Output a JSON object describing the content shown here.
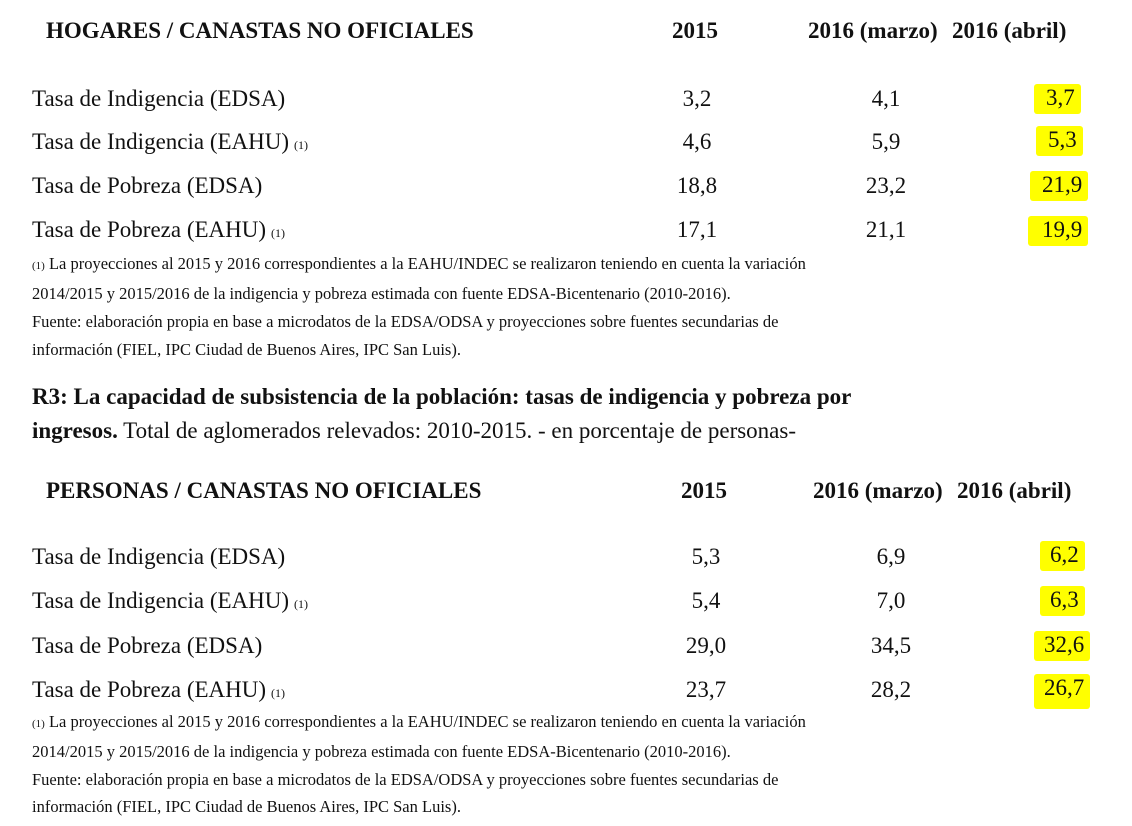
{
  "tables": [
    {
      "header": {
        "title": "HOGARES / CANASTAS NO OFICIALES",
        "col1": "2015",
        "col2": "2016 (marzo)",
        "col3": "2016 (abril)"
      },
      "rows": [
        {
          "label": "Tasa de Indigencia (EDSA)",
          "note": "",
          "v1": "3,2",
          "v2": "4,1",
          "v3": "3,7"
        },
        {
          "label": "Tasa de Indigencia (EAHU)",
          "note": "(1)",
          "v1": "4,6",
          "v2": "5,9",
          "v3": "5,3"
        },
        {
          "label": "Tasa de Pobreza (EDSA)",
          "note": "",
          "v1": "18,8",
          "v2": "23,2",
          "v3": "21,9"
        },
        {
          "label": "Tasa de Pobreza (EAHU)",
          "note": "(1)",
          "v1": "17,1",
          "v2": "21,1",
          "v3": "19,9"
        }
      ],
      "footnote": {
        "marker": "(1)",
        "line1": "La proyecciones al 2015 y 2016 correspondientes a la EAHU/INDEC se realizaron teniendo en cuenta la variación",
        "line2": "2014/2015 y 2015/2016 de la indigencia y pobreza estimada con fuente EDSA-Bicentenario (2010-2016).",
        "line3": "Fuente: elaboración propia en base a microdatos de la EDSA/ODSA y proyecciones sobre fuentes secundarias de",
        "line4": "información (FIEL, IPC Ciudad de Buenos Aires, IPC San Luis)."
      }
    },
    {
      "header": {
        "title": "PERSONAS / CANASTAS NO OFICIALES",
        "col1": "2015",
        "col2": "2016 (marzo)",
        "col3": "2016 (abril)"
      },
      "rows": [
        {
          "label": "Tasa de Indigencia (EDSA)",
          "note": "",
          "v1": "5,3",
          "v2": "6,9",
          "v3": "6,2"
        },
        {
          "label": "Tasa de Indigencia (EAHU)",
          "note": "(1)",
          "v1": "5,4",
          "v2": "7,0",
          "v3": "6,3"
        },
        {
          "label": "Tasa de Pobreza (EDSA)",
          "note": "",
          "v1": "29,0",
          "v2": "34,5",
          "v3": "32,6"
        },
        {
          "label": "Tasa de Pobreza (EAHU)",
          "note": "(1)",
          "v1": "23,7",
          "v2": "28,2",
          "v3": "26,7"
        }
      ],
      "footnote": {
        "marker": "(1)",
        "line1": "La proyecciones al 2015 y 2016 correspondientes a la EAHU/INDEC se realizaron teniendo en cuenta la variación",
        "line2": "2014/2015 y 2015/2016 de la indigencia y pobreza estimada con fuente EDSA-Bicentenario (2010-2016).",
        "line3": "Fuente: elaboración propia en base a microdatos de la EDSA/ODSA y proyecciones sobre fuentes secundarias de",
        "line4": "información (FIEL, IPC Ciudad de Buenos Aires, IPC San Luis)."
      }
    }
  ],
  "r3": {
    "title_line1": "R3: La capacidad de subsistencia de la población: tasas de indigencia y pobreza por",
    "title_bold2": "ingresos.",
    "title_rest2": " Total de aglomerados relevados: 2010-2015. - en porcentaje de personas-"
  },
  "colors": {
    "highlight": "#ffff00",
    "text": "#111111"
  }
}
